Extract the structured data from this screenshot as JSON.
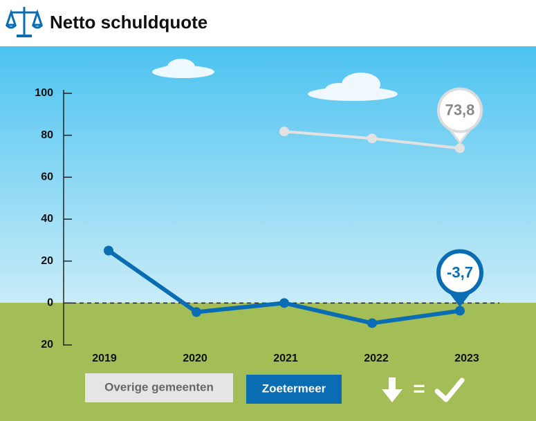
{
  "chart_data": {
    "type": "line",
    "title": "Netto schuldquote",
    "categories": [
      "2019",
      "2020",
      "2021",
      "2022",
      "2023"
    ],
    "series": [
      {
        "name": "Overige gemeenten",
        "color": "#e2e2e2",
        "values": [
          null,
          null,
          81.8,
          78.5,
          73.8
        ],
        "value_labels": [
          null,
          null,
          null,
          null,
          "73,8"
        ]
      },
      {
        "name": "Zoetermeer",
        "color": "#0a6db3",
        "values": [
          25,
          -4.3,
          0,
          -9.6,
          -3.7
        ],
        "value_labels": [
          null,
          null,
          null,
          null,
          "-3,7"
        ]
      }
    ],
    "ylim": [
      -20,
      100
    ],
    "yticks": [
      {
        "value": -20,
        "label": "20"
      },
      0,
      20,
      40,
      60,
      80,
      100
    ],
    "legend_note": "="
  }
}
